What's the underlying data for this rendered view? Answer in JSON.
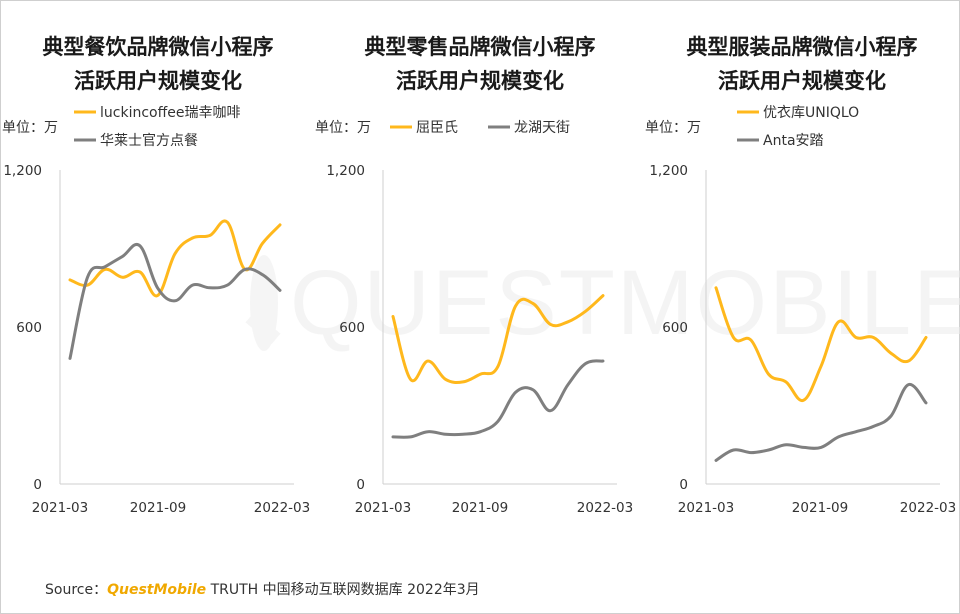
{
  "colors": {
    "accent": "#FFB81C",
    "secondary": "#7F7F7F",
    "axis": "#CFCFCF",
    "brand": "#F0A800"
  },
  "watermark": {
    "text": "QUESTMOBILE"
  },
  "source": {
    "prefix": "Source：",
    "brand": "QuestMobile",
    "suffix": " TRUTH 中国移动互联网数据库 2022年3月"
  },
  "chart_data": [
    {
      "type": "line",
      "title_lines": [
        "典型餐饮品牌微信小程序",
        "活跃用户规模变化"
      ],
      "unit": "单位：万",
      "ylim": [
        0,
        1200
      ],
      "yticks": [
        "0",
        "600",
        "1,200"
      ],
      "ytick_values": [
        0,
        600,
        1200
      ],
      "x": [
        "2021-03",
        "2021-04",
        "2021-05",
        "2021-06",
        "2021-07",
        "2021-08",
        "2021-09",
        "2021-10",
        "2021-11",
        "2021-12",
        "2022-01",
        "2022-02",
        "2022-03"
      ],
      "xticks": [
        "2021-03",
        "2021-09",
        "2022-03"
      ],
      "series": [
        {
          "name": "luckincoffee瑞幸咖啡",
          "color": "#FFB81C",
          "values": [
            780,
            760,
            820,
            790,
            810,
            720,
            880,
            940,
            950,
            1000,
            820,
            920,
            990
          ]
        },
        {
          "name": "华莱士官方点餐",
          "color": "#7F7F7F",
          "values": [
            480,
            790,
            830,
            870,
            910,
            750,
            700,
            760,
            750,
            760,
            820,
            800,
            740
          ]
        }
      ]
    },
    {
      "type": "line",
      "title_lines": [
        "典型零售品牌微信小程序",
        "活跃用户规模变化"
      ],
      "unit": "单位：万",
      "ylim": [
        0,
        1200
      ],
      "yticks": [
        "0",
        "600",
        "1,200"
      ],
      "ytick_values": [
        0,
        600,
        1200
      ],
      "x": [
        "2021-03",
        "2021-04",
        "2021-05",
        "2021-06",
        "2021-07",
        "2021-08",
        "2021-09",
        "2021-10",
        "2021-11",
        "2021-12",
        "2022-01",
        "2022-02",
        "2022-03"
      ],
      "xticks": [
        "2021-03",
        "2021-09",
        "2022-03"
      ],
      "series": [
        {
          "name": "屈臣氏",
          "color": "#FFB81C",
          "values": [
            640,
            400,
            470,
            400,
            390,
            420,
            450,
            680,
            690,
            610,
            620,
            660,
            720
          ]
        },
        {
          "name": "龙湖天街",
          "color": "#7F7F7F",
          "values": [
            180,
            180,
            200,
            190,
            190,
            200,
            240,
            350,
            360,
            280,
            380,
            460,
            470
          ]
        }
      ]
    },
    {
      "type": "line",
      "title_lines": [
        "典型服装品牌微信小程序",
        "活跃用户规模变化"
      ],
      "unit": "单位：万",
      "ylim": [
        0,
        1200
      ],
      "yticks": [
        "0",
        "600",
        "1,200"
      ],
      "ytick_values": [
        0,
        600,
        1200
      ],
      "x": [
        "2021-03",
        "2021-04",
        "2021-05",
        "2021-06",
        "2021-07",
        "2021-08",
        "2021-09",
        "2021-10",
        "2021-11",
        "2021-12",
        "2022-01",
        "2022-02",
        "2022-03"
      ],
      "xticks": [
        "2021-03",
        "2021-09",
        "2022-03"
      ],
      "series": [
        {
          "name": "优衣库UNIQLO",
          "color": "#FFB81C",
          "values": [
            750,
            560,
            550,
            420,
            390,
            320,
            450,
            620,
            560,
            560,
            500,
            470,
            560
          ]
        },
        {
          "name": "Anta安踏",
          "color": "#7F7F7F",
          "values": [
            90,
            130,
            120,
            130,
            150,
            140,
            140,
            180,
            200,
            220,
            260,
            380,
            310
          ]
        }
      ]
    }
  ]
}
